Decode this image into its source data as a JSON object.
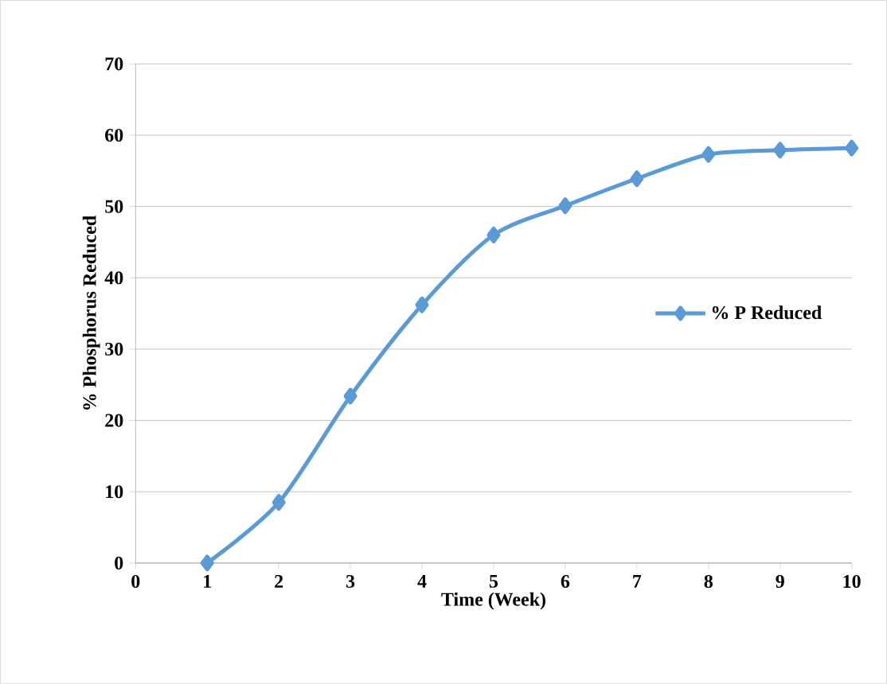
{
  "chart_data": {
    "type": "line",
    "xlabel": "Time (Week)",
    "ylabel": "% Phosphorus Reduced",
    "x": [
      1,
      2,
      3,
      4,
      5,
      6,
      7,
      8,
      9,
      10
    ],
    "series": [
      {
        "name": "% P Reduced",
        "color": "#5b9bd5",
        "values": [
          0,
          8.5,
          23.4,
          36.2,
          46.0,
          50.1,
          53.9,
          57.3,
          57.9,
          58.2
        ]
      }
    ],
    "xlim": [
      0,
      10
    ],
    "ylim": [
      0,
      70
    ],
    "xticks": [
      0,
      1,
      2,
      3,
      4,
      5,
      6,
      7,
      8,
      9,
      10
    ],
    "yticks": [
      0,
      10,
      20,
      30,
      40,
      50,
      60,
      70
    ],
    "grid": "y",
    "legend": "right",
    "marker": "diamond",
    "line_style": "solid"
  }
}
